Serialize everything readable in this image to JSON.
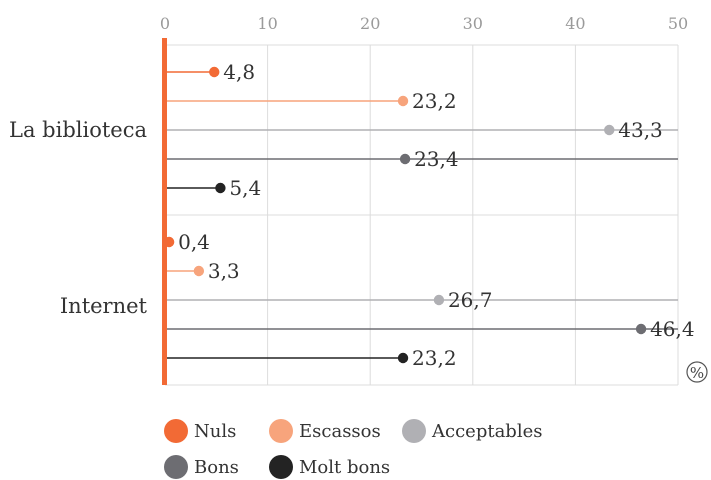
{
  "chart_data": {
    "type": "lollipop",
    "title": "",
    "xlabel": "",
    "ylabel": "",
    "unit_label": "%",
    "xlim": [
      0,
      50
    ],
    "x_ticks": [
      0,
      10,
      20,
      30,
      40,
      50
    ],
    "grid": true,
    "legend_position": "bottom",
    "categories": [
      "La biblioteca",
      "Internet"
    ],
    "series": [
      {
        "name": "Nuls",
        "color": "#f26a35",
        "values": [
          4.8,
          0.4
        ],
        "labels": [
          "4,8",
          "0,4"
        ]
      },
      {
        "name": "Escassos",
        "color": "#f7a47c",
        "values": [
          23.2,
          3.3
        ],
        "labels": [
          "23,2",
          "3,3"
        ]
      },
      {
        "name": "Acceptables",
        "color": "#b0b0b4",
        "values": [
          43.3,
          26.7
        ],
        "labels": [
          "43,3",
          "26,7"
        ]
      },
      {
        "name": "Bons",
        "color": "#6d6d72",
        "values": [
          23.4,
          46.4
        ],
        "labels": [
          "23,4",
          "46,4"
        ]
      },
      {
        "name": "Molt bons",
        "color": "#232323",
        "values": [
          5.4,
          23.2
        ],
        "labels": [
          "5,4",
          "23,2"
        ]
      }
    ],
    "axis_color": "#f26a35"
  }
}
